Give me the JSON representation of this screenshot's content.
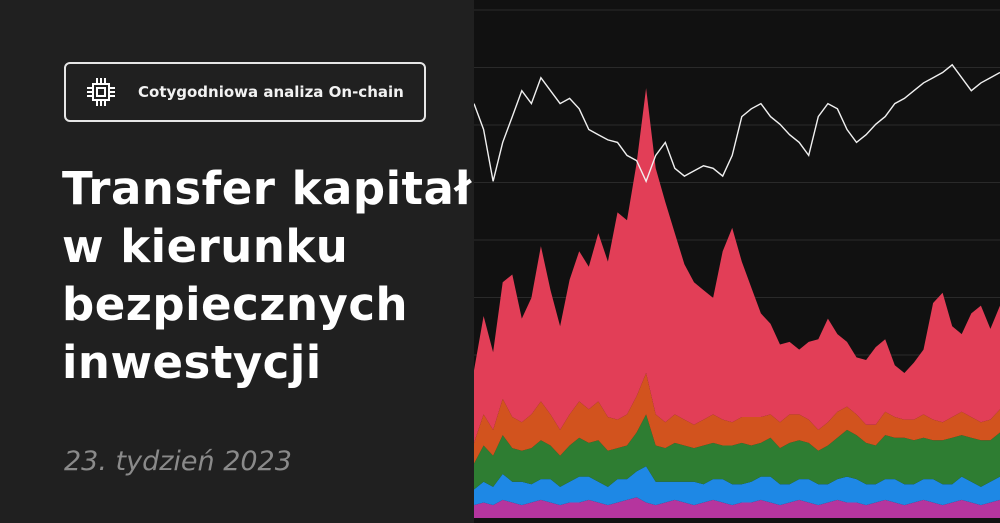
{
  "badge": {
    "label": "Cotygodniowa analiza On-chain",
    "icon": "chip-icon"
  },
  "title": {
    "lines": [
      "Transfer kapitału",
      "w kierunku",
      "bezpiecznych",
      "inwestycji"
    ]
  },
  "subtitle": "23. tydzień 2023",
  "colors": {
    "background_left": "#202020",
    "background_chart": "#111111",
    "red": "#e23e57",
    "orange": "#d2531e",
    "green": "#2e7d32",
    "blue": "#1e88e5",
    "purple": "#b5359e",
    "line": "#f0f0f0"
  },
  "chart_data": {
    "type": "area",
    "title": "",
    "xlabel": "",
    "ylabel": "",
    "grid": true,
    "series": [
      {
        "color": "#b5359e",
        "values": [
          5,
          6,
          5,
          7,
          6,
          5,
          6,
          7,
          6,
          5,
          6,
          6,
          7,
          6,
          5,
          6,
          7,
          8,
          6,
          5,
          6,
          7,
          6,
          5,
          6,
          7,
          6,
          5,
          6,
          6,
          7,
          6,
          5,
          6,
          7,
          6,
          5,
          6,
          7,
          6,
          6,
          5,
          6,
          7,
          6,
          5,
          6,
          7,
          6,
          5,
          6,
          7,
          6,
          5,
          6,
          7
        ]
      },
      {
        "color": "#1e88e5",
        "values": [
          6,
          8,
          7,
          10,
          8,
          9,
          7,
          8,
          9,
          7,
          8,
          10,
          9,
          8,
          7,
          9,
          8,
          10,
          14,
          9,
          8,
          7,
          8,
          9,
          7,
          8,
          9,
          8,
          7,
          8,
          9,
          10,
          8,
          7,
          8,
          9,
          8,
          7,
          8,
          10,
          9,
          8,
          7,
          8,
          9,
          8,
          7,
          8,
          9,
          8,
          7,
          9,
          8,
          7,
          8,
          9
        ]
      },
      {
        "color": "#2e7d32",
        "values": [
          10,
          14,
          12,
          15,
          13,
          12,
          14,
          15,
          13,
          12,
          14,
          15,
          13,
          16,
          14,
          12,
          13,
          15,
          20,
          14,
          13,
          15,
          14,
          13,
          15,
          14,
          13,
          15,
          16,
          14,
          13,
          15,
          14,
          16,
          15,
          14,
          13,
          15,
          16,
          18,
          17,
          16,
          15,
          17,
          16,
          18,
          17,
          16,
          15,
          17,
          18,
          16,
          17,
          18,
          16,
          17
        ]
      },
      {
        "color": "#d2531e",
        "values": [
          8,
          12,
          10,
          14,
          12,
          11,
          13,
          15,
          12,
          10,
          12,
          14,
          13,
          15,
          13,
          11,
          12,
          14,
          16,
          12,
          10,
          11,
          10,
          9,
          10,
          11,
          10,
          9,
          10,
          11,
          10,
          9,
          10,
          11,
          10,
          9,
          8,
          9,
          10,
          9,
          8,
          7,
          8,
          9,
          8,
          7,
          8,
          9,
          8,
          7,
          8,
          9,
          8,
          7,
          8,
          9
        ]
      },
      {
        "color": "#e23e57",
        "values": [
          28,
          38,
          30,
          45,
          55,
          40,
          45,
          60,
          48,
          40,
          52,
          58,
          55,
          65,
          60,
          80,
          75,
          90,
          110,
          95,
          85,
          70,
          60,
          55,
          50,
          45,
          65,
          75,
          60,
          50,
          40,
          35,
          30,
          28,
          25,
          30,
          35,
          40,
          30,
          25,
          22,
          25,
          30,
          28,
          20,
          18,
          22,
          25,
          45,
          50,
          35,
          30,
          40,
          45,
          35,
          40
        ]
      }
    ],
    "line": {
      "color": "#f0f0f0",
      "values": [
        50,
        40,
        20,
        35,
        45,
        55,
        50,
        60,
        55,
        50,
        52,
        48,
        40,
        38,
        36,
        35,
        30,
        28,
        20,
        30,
        35,
        25,
        22,
        24,
        26,
        25,
        22,
        30,
        45,
        48,
        50,
        45,
        42,
        38,
        35,
        30,
        45,
        50,
        48,
        40,
        35,
        38,
        42,
        45,
        50,
        52,
        55,
        58,
        60,
        62,
        65,
        60,
        55,
        58,
        60,
        62
      ]
    },
    "ylim": [
      0,
      200
    ]
  }
}
